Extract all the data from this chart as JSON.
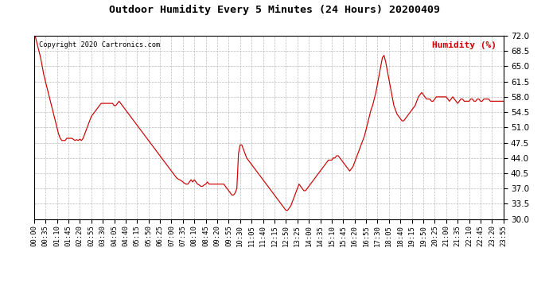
{
  "title": "Outdoor Humidity Every 5 Minutes (24 Hours) 20200409",
  "copyright_text": "Copyright 2020 Cartronics.com",
  "legend_text": "Humidity (%)",
  "line_color": "#cc0000",
  "legend_color": "#cc0000",
  "copyright_color": "#000000",
  "title_color": "#000000",
  "background_color": "#ffffff",
  "plot_bg_color": "#ffffff",
  "grid_color": "#aaaaaa",
  "ylim": [
    30.0,
    72.0
  ],
  "yticks": [
    30.0,
    33.5,
    37.0,
    40.5,
    44.0,
    47.5,
    51.0,
    54.5,
    58.0,
    61.5,
    65.0,
    68.5,
    72.0
  ],
  "xtick_labels": [
    "00:00",
    "00:35",
    "01:10",
    "01:45",
    "02:20",
    "02:55",
    "03:30",
    "04:05",
    "04:40",
    "05:15",
    "05:50",
    "06:25",
    "07:00",
    "07:35",
    "08:10",
    "08:45",
    "09:20",
    "09:55",
    "10:30",
    "11:05",
    "11:40",
    "12:15",
    "12:50",
    "13:25",
    "14:00",
    "14:35",
    "15:10",
    "15:45",
    "16:20",
    "16:55",
    "17:30",
    "18:05",
    "18:40",
    "19:15",
    "19:50",
    "20:25",
    "21:00",
    "21:35",
    "22:10",
    "22:45",
    "23:20",
    "23:55"
  ],
  "humidity_values": [
    73,
    71.5,
    70,
    68.5,
    67,
    65,
    63,
    61.5,
    60,
    58.5,
    57,
    55.5,
    54,
    52.5,
    51,
    49.5,
    48.5,
    48,
    48,
    48,
    48.5,
    48.5,
    48.5,
    48.5,
    48.3,
    48.0,
    48.2,
    48.0,
    48.3,
    48.0,
    48.5,
    49.5,
    50.5,
    51.5,
    52.5,
    53.5,
    54,
    54.5,
    55,
    55.5,
    56,
    56.5,
    56.5,
    56.5,
    56.5,
    56.5,
    56.5,
    56.5,
    56.5,
    56.0,
    56.0,
    56.5,
    57,
    56.5,
    56,
    55.5,
    55,
    54.5,
    54,
    53.5,
    53,
    52.5,
    52,
    51.5,
    51,
    50.5,
    50,
    49.5,
    49,
    48.5,
    48,
    47.5,
    47,
    46.5,
    46,
    45.5,
    45,
    44.5,
    44,
    43.5,
    43,
    42.5,
    42,
    41.5,
    41,
    40.5,
    40,
    39.5,
    39.2,
    39.0,
    38.8,
    38.5,
    38.2,
    38.0,
    38.0,
    38.5,
    39,
    38.5,
    39,
    38.5,
    38,
    37.8,
    37.5,
    37.5,
    37.8,
    38,
    38.5,
    38,
    38,
    38,
    38,
    38,
    38,
    38,
    38,
    38,
    38,
    37.5,
    37,
    36.5,
    36,
    35.5,
    35.5,
    36,
    37,
    45,
    47,
    47,
    46,
    45,
    44,
    43.5,
    43,
    42.5,
    42,
    41.5,
    41,
    40.5,
    40,
    39.5,
    39,
    38.5,
    38,
    37.5,
    37,
    36.5,
    36,
    35.5,
    35,
    34.5,
    34,
    33.5,
    33,
    32.5,
    32,
    32,
    32.5,
    33,
    34,
    35,
    36,
    37,
    38,
    37.5,
    37,
    36.5,
    36.5,
    37,
    37.5,
    38,
    38.5,
    39,
    39.5,
    40,
    40.5,
    41,
    41.5,
    42,
    42.5,
    43,
    43.5,
    43.5,
    43.5,
    44,
    44,
    44.5,
    44.5,
    44,
    43.5,
    43,
    42.5,
    42,
    41.5,
    41,
    41.5,
    42,
    43,
    44,
    45,
    46,
    47,
    48,
    49,
    50.5,
    52,
    53.5,
    55,
    56,
    57.5,
    59,
    61,
    63,
    65,
    67,
    67.5,
    66,
    64,
    62,
    60,
    58,
    56,
    55,
    54,
    53.5,
    53,
    52.5,
    52.5,
    53,
    53.5,
    54,
    54.5,
    55,
    55.5,
    56,
    57,
    58,
    58.5,
    59,
    58.5,
    58,
    57.5,
    57.5,
    57.5,
    57,
    57,
    57.5,
    58,
    58,
    58,
    58,
    58,
    58,
    58,
    57.5,
    57,
    57.5,
    58,
    57.5,
    57,
    56.5,
    57,
    57.5,
    57.5,
    57,
    57,
    57,
    57,
    57.5,
    57.5,
    57,
    57,
    57.5,
    57.5,
    57,
    57,
    57.5,
    57.5,
    57.5,
    57.5,
    57,
    57,
    57,
    57,
    57,
    57,
    57,
    57,
    57
  ]
}
